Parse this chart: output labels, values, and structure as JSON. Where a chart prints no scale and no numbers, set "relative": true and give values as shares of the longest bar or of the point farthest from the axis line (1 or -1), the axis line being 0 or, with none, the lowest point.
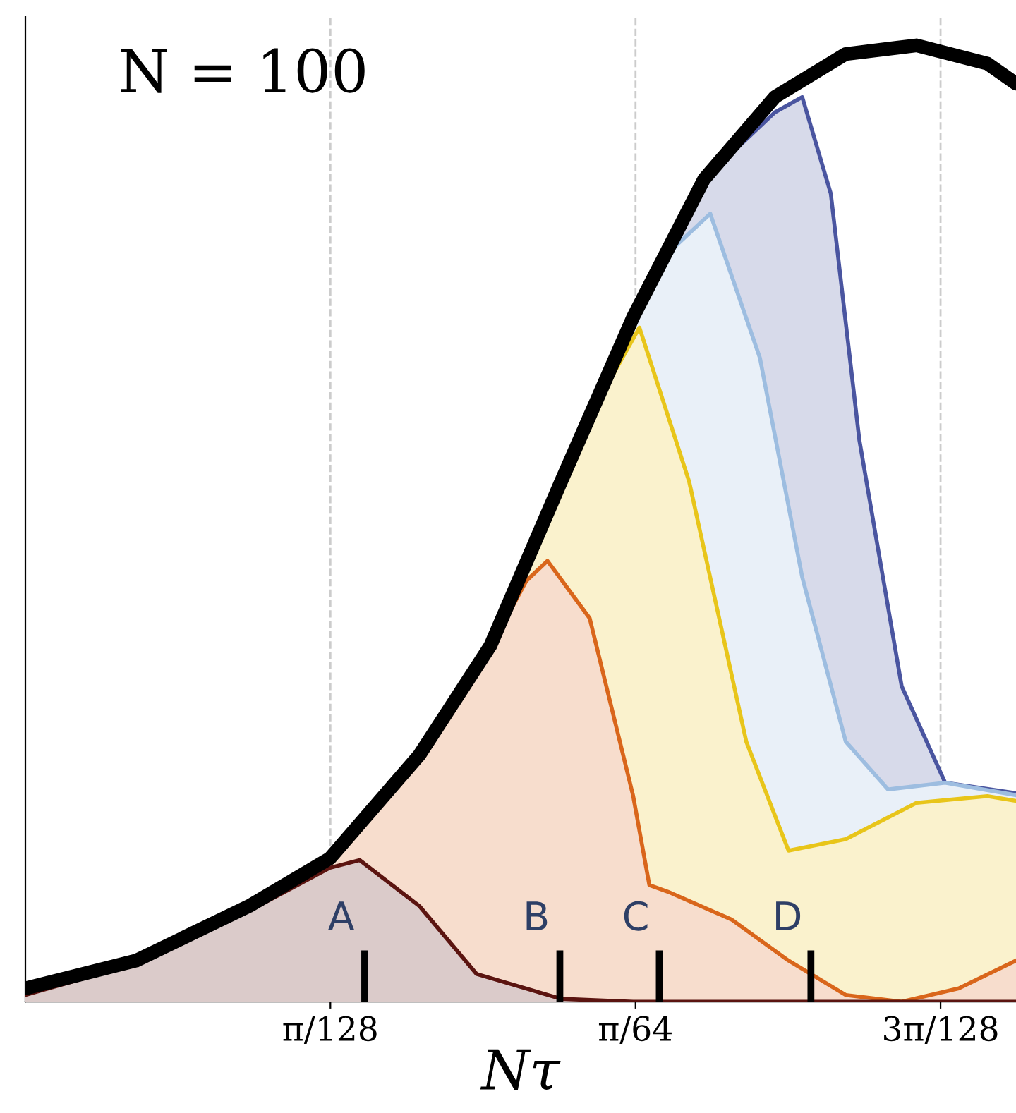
{
  "chart_data": {
    "type": "area",
    "title": "N = 100",
    "xlabel": "Nτ",
    "relative": true,
    "grid": "x",
    "line_style": "solid",
    "marker": "none",
    "xlim": [
      0,
      0.0797
    ],
    "xticks": [
      {
        "value": 0.02454,
        "label": "π/128"
      },
      {
        "value": 0.04909,
        "label": "π/64"
      },
      {
        "value": 0.07363,
        "label": "3π/128"
      }
    ],
    "series": [
      {
        "color": "#4a55a0",
        "x": [
          0,
          0.0089,
          0.018,
          0.0245,
          0.0317,
          0.0374,
          0.0431,
          0.0489,
          0.0546,
          0.0603,
          0.0625,
          0.0648,
          0.0671,
          0.0705,
          0.074,
          0.0797
        ],
        "values": [
          0.014,
          0.043,
          0.1,
          0.15,
          0.258,
          0.372,
          0.544,
          0.716,
          0.86,
          0.93,
          0.946,
          0.845,
          0.587,
          0.33,
          0.229,
          0.218
        ]
      },
      {
        "color": "#9dbde0",
        "x": [
          0,
          0.0089,
          0.018,
          0.0245,
          0.0317,
          0.0374,
          0.0431,
          0.0489,
          0.0523,
          0.0551,
          0.0591,
          0.0625,
          0.066,
          0.0694,
          0.074,
          0.0797
        ],
        "values": [
          0.014,
          0.043,
          0.1,
          0.15,
          0.258,
          0.372,
          0.544,
          0.716,
          0.79,
          0.824,
          0.673,
          0.444,
          0.272,
          0.222,
          0.229,
          0.216
        ]
      },
      {
        "color": "#e8c51a",
        "x": [
          0,
          0.0089,
          0.018,
          0.0245,
          0.0317,
          0.0374,
          0.0431,
          0.0466,
          0.0494,
          0.0534,
          0.058,
          0.0614,
          0.066,
          0.0717,
          0.0774,
          0.0797
        ],
        "values": [
          0.014,
          0.043,
          0.1,
          0.15,
          0.258,
          0.372,
          0.544,
          0.64,
          0.705,
          0.544,
          0.272,
          0.158,
          0.17,
          0.208,
          0.215,
          0.21
        ]
      },
      {
        "color": "#d9661b",
        "x": [
          0,
          0.0089,
          0.018,
          0.0245,
          0.0317,
          0.0374,
          0.0403,
          0.042,
          0.0454,
          0.0489,
          0.0502,
          0.0517,
          0.0568,
          0.0614,
          0.066,
          0.0705,
          0.0751,
          0.0797
        ],
        "values": [
          0.014,
          0.043,
          0.1,
          0.15,
          0.258,
          0.37,
          0.44,
          0.461,
          0.401,
          0.215,
          0.122,
          0.115,
          0.086,
          0.043,
          0.007,
          0,
          0.014,
          0.043
        ]
      },
      {
        "color": "#5b1410",
        "x": [
          0,
          0.0089,
          0.018,
          0.0245,
          0.0269,
          0.0317,
          0.0363,
          0.0431,
          0.0489,
          0.0797
        ],
        "values": [
          0.007,
          0.04,
          0.095,
          0.14,
          0.148,
          0.1,
          0.029,
          0.003,
          0,
          0
        ]
      },
      {
        "type": "line",
        "color": "#000000",
        "x": [
          0,
          0.0089,
          0.018,
          0.0245,
          0.0317,
          0.0374,
          0.0431,
          0.0489,
          0.0546,
          0.0603,
          0.066,
          0.0717,
          0.0774,
          0.0797
        ],
        "values": [
          0.014,
          0.043,
          0.1,
          0.15,
          0.258,
          0.372,
          0.544,
          0.716,
          0.86,
          0.946,
          0.991,
          1.0,
          0.981,
          0.96
        ]
      }
    ],
    "annotations": [
      {
        "text": "A",
        "x": 0.0273,
        "y": 0
      },
      {
        "text": "B",
        "x": 0.043,
        "y": 0
      },
      {
        "text": "C",
        "x": 0.051,
        "y": 0
      },
      {
        "text": "D",
        "x": 0.0632,
        "y": 0
      }
    ]
  }
}
